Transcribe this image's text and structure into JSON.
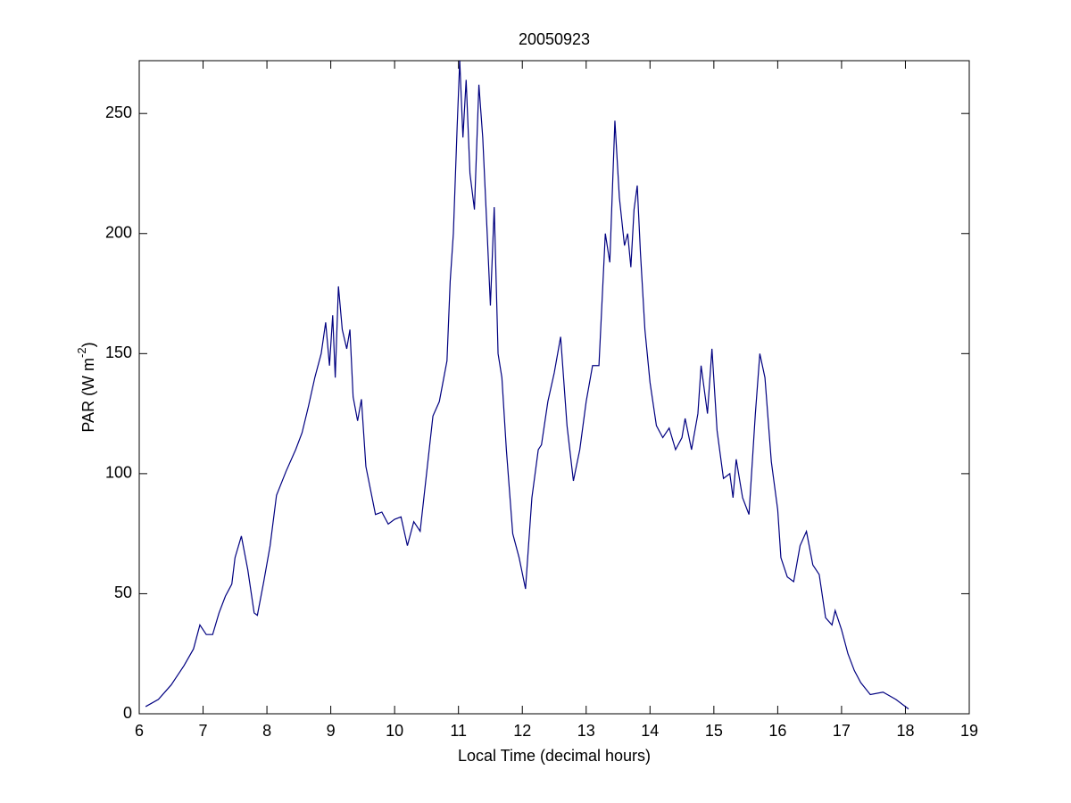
{
  "chart_data": {
    "type": "line",
    "title": "20050923",
    "xlabel": "Local Time (decimal hours)",
    "ylabel": {
      "text": "PAR (W m",
      "sup": "-2",
      "tail": ")"
    },
    "xlim": [
      6,
      19
    ],
    "xticks": [
      6,
      7,
      8,
      9,
      10,
      11,
      12,
      13,
      14,
      15,
      16,
      17,
      18,
      19
    ],
    "ylim": [
      0,
      272
    ],
    "yticks": [
      0,
      50,
      100,
      150,
      200,
      250
    ],
    "grid": false,
    "series": [
      {
        "color": "#000080",
        "x": [
          6.1,
          6.3,
          6.5,
          6.7,
          6.85,
          6.95,
          7.05,
          7.15,
          7.25,
          7.35,
          7.45,
          7.5,
          7.6,
          7.7,
          7.8,
          7.85,
          7.95,
          8.05,
          8.15,
          8.3,
          8.45,
          8.55,
          8.65,
          8.75,
          8.85,
          8.92,
          8.98,
          9.03,
          9.07,
          9.12,
          9.18,
          9.25,
          9.3,
          9.35,
          9.42,
          9.48,
          9.55,
          9.7,
          9.8,
          9.9,
          10.0,
          10.1,
          10.2,
          10.3,
          10.4,
          10.5,
          10.6,
          10.7,
          10.82,
          10.87,
          10.92,
          10.98,
          11.02,
          11.07,
          11.12,
          11.18,
          11.25,
          11.32,
          11.38,
          11.45,
          11.5,
          11.56,
          11.62,
          11.68,
          11.75,
          11.85,
          11.95,
          12.05,
          12.15,
          12.25,
          12.3,
          12.4,
          12.5,
          12.6,
          12.7,
          12.8,
          12.9,
          13.0,
          13.1,
          13.2,
          13.3,
          13.37,
          13.45,
          13.52,
          13.6,
          13.65,
          13.7,
          13.75,
          13.8,
          13.85,
          13.92,
          14.0,
          14.1,
          14.2,
          14.3,
          14.4,
          14.5,
          14.55,
          14.65,
          14.75,
          14.8,
          14.9,
          14.97,
          15.05,
          15.15,
          15.25,
          15.3,
          15.35,
          15.45,
          15.55,
          15.65,
          15.72,
          15.8,
          15.9,
          16.0,
          16.05,
          16.15,
          16.25,
          16.35,
          16.45,
          16.55,
          16.65,
          16.75,
          16.85,
          16.9,
          17.0,
          17.1,
          17.2,
          17.3,
          17.45,
          17.65,
          17.85,
          18.05
        ],
        "values": [
          3,
          6,
          12,
          20,
          27,
          37,
          33,
          33,
          42,
          49,
          54,
          65,
          74,
          60,
          42,
          41,
          55,
          70,
          91,
          101,
          110,
          117,
          128,
          140,
          150,
          163,
          145,
          166,
          140,
          178,
          160,
          152,
          160,
          132,
          122,
          131,
          103,
          83,
          84,
          79,
          81,
          82,
          70,
          80,
          76,
          100,
          124,
          130,
          147,
          180,
          200,
          245,
          272,
          240,
          264,
          225,
          210,
          262,
          240,
          200,
          170,
          211,
          150,
          140,
          110,
          75,
          65,
          52,
          90,
          110,
          112,
          130,
          142,
          157,
          120,
          97,
          110,
          130,
          145,
          145,
          200,
          188,
          247,
          215,
          195,
          200,
          186,
          210,
          220,
          192,
          160,
          138,
          120,
          115,
          119,
          110,
          115,
          123,
          110,
          125,
          145,
          125,
          152,
          118,
          98,
          100,
          90,
          106,
          90,
          83,
          125,
          150,
          140,
          105,
          85,
          65,
          57,
          55,
          70,
          76,
          62,
          58,
          40,
          37,
          43,
          35,
          25,
          18,
          13,
          8,
          9,
          6,
          2
        ]
      }
    ]
  }
}
